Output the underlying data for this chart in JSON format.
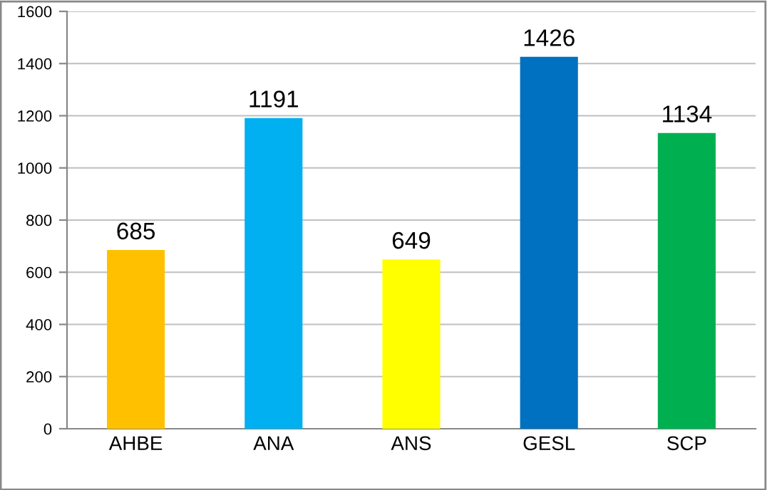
{
  "chart_data": {
    "type": "bar",
    "categories": [
      "AHBE",
      "ANA",
      "ANS",
      "GESL",
      "SCP"
    ],
    "values": [
      685,
      1191,
      649,
      1426,
      1134
    ],
    "colors": [
      "#ffc000",
      "#00b0f0",
      "#ffff00",
      "#0070c0",
      "#00b050"
    ],
    "ylim": [
      0,
      1600
    ],
    "yticks": [
      0,
      200,
      400,
      600,
      800,
      1000,
      1200,
      1400,
      1600
    ],
    "grid": "y",
    "data_labels": true
  }
}
